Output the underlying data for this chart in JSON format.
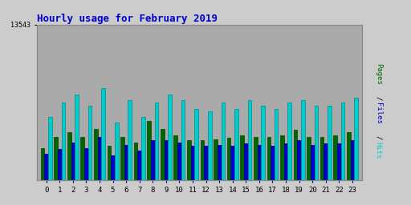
{
  "title": "Hourly usage for February 2019",
  "hours": [
    0,
    1,
    2,
    3,
    4,
    5,
    6,
    7,
    8,
    9,
    10,
    11,
    12,
    13,
    14,
    15,
    16,
    17,
    18,
    19,
    20,
    21,
    22,
    23
  ],
  "pages": [
    2800,
    3800,
    4200,
    3800,
    4500,
    3000,
    3800,
    3300,
    5200,
    4500,
    3900,
    3500,
    3500,
    3600,
    3700,
    3900,
    3800,
    3800,
    3900,
    4400,
    3800,
    3800,
    3900,
    4200
  ],
  "files": [
    2300,
    2700,
    3300,
    2800,
    3800,
    2200,
    3100,
    2600,
    3500,
    3500,
    3300,
    3000,
    3000,
    3100,
    3000,
    3200,
    3100,
    3000,
    3200,
    3500,
    3100,
    3200,
    3200,
    3500
  ],
  "hits": [
    5500,
    6800,
    7500,
    6500,
    8000,
    5000,
    7000,
    5500,
    6800,
    7500,
    7000,
    6200,
    6000,
    6800,
    6200,
    7000,
    6500,
    6200,
    6800,
    7000,
    6500,
    6500,
    6800,
    7200
  ],
  "pages_color": "#006600",
  "files_color": "#0000cc",
  "hits_color": "#00cccc",
  "bg_color": "#cccccc",
  "plot_bg_color": "#aaaaaa",
  "title_color": "#0000cc",
  "ylim_max": 13543,
  "bar_width": 0.28,
  "pages_label_color": "#006600",
  "files_label_color": "#0000cc",
  "hits_label_color": "#00cccc"
}
